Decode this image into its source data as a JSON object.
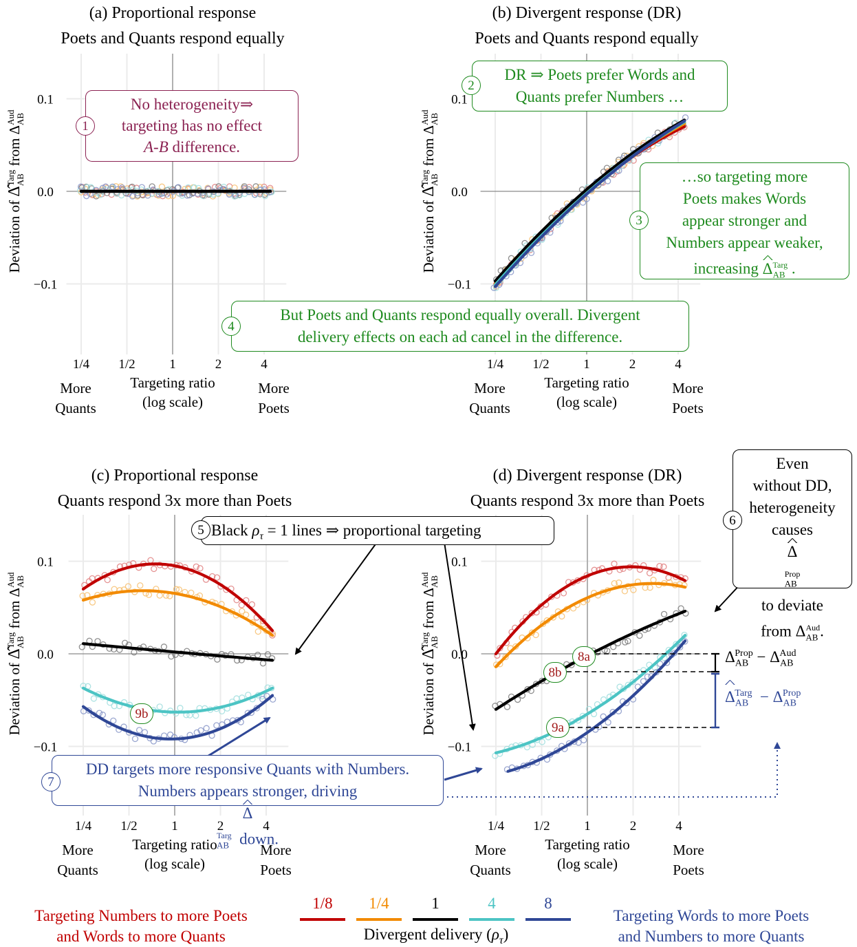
{
  "chart_data": [
    {
      "panel": "a",
      "type": "scatter",
      "title": [
        "(a) Proportional response",
        "Poets and Quants respond equally"
      ],
      "ylabel": "Deviation of Δ̂ Targ AB from Δ Aud AB",
      "xlabel": [
        "Targeting ratio",
        "(log scale)"
      ],
      "xscale": "log2",
      "xlim": [
        0.2,
        5.5
      ],
      "ylim": [
        -0.135,
        0.125
      ],
      "xticks": [
        "1/4",
        "1/2",
        "1",
        "2",
        "4"
      ],
      "yticks": [
        "−0.1",
        "0.0",
        "0.1"
      ],
      "x_end_labels": {
        "left": [
          "More",
          "Quants"
        ],
        "right": [
          "More",
          "Poets"
        ]
      },
      "series": [
        {
          "name": "1/8",
          "x": [
            0.25,
            4.4
          ],
          "y": [
            0.0,
            0.0
          ]
        },
        {
          "name": "1/4",
          "x": [
            0.25,
            4.4
          ],
          "y": [
            0.0,
            0.0
          ]
        },
        {
          "name": "1",
          "x": [
            0.25,
            4.4
          ],
          "y": [
            0.0,
            0.0
          ]
        },
        {
          "name": "4",
          "x": [
            0.25,
            4.4
          ],
          "y": [
            0.0,
            0.0
          ]
        },
        {
          "name": "8",
          "x": [
            0.25,
            4.4
          ],
          "y": [
            0.0,
            0.0
          ]
        }
      ]
    },
    {
      "panel": "b",
      "type": "scatter",
      "title": [
        "(b) Divergent response (DR)",
        "Poets and Quants respond equally"
      ],
      "ylabel": "Deviation of Δ̂ Targ AB from Δ Aud AB",
      "xlabel": [
        "Targeting ratio",
        "(log scale)"
      ],
      "xscale": "log2",
      "xlim": [
        0.2,
        5.5
      ],
      "ylim": [
        -0.135,
        0.125
      ],
      "xticks": [
        "1/4",
        "1/2",
        "1",
        "2",
        "4"
      ],
      "yticks": [
        "−0.1",
        "0.0",
        "0.1"
      ],
      "x_end_labels": {
        "left": [
          "More",
          "Quants"
        ],
        "right": [
          "More",
          "Poets"
        ]
      },
      "series": [
        {
          "name": "1/8",
          "x": [
            0.25,
            1,
            4.4
          ],
          "y": [
            -0.1,
            0.0,
            0.07
          ]
        },
        {
          "name": "1/4",
          "x": [
            0.25,
            1,
            4.4
          ],
          "y": [
            -0.1,
            0.0,
            0.073
          ]
        },
        {
          "name": "1",
          "x": [
            0.25,
            1,
            4.4
          ],
          "y": [
            -0.097,
            0.002,
            0.077
          ]
        },
        {
          "name": "4",
          "x": [
            0.25,
            1,
            4.4
          ],
          "y": [
            -0.101,
            -0.002,
            0.075
          ]
        },
        {
          "name": "8",
          "x": [
            0.25,
            1,
            4.4
          ],
          "y": [
            -0.103,
            -0.003,
            0.076
          ]
        }
      ]
    },
    {
      "panel": "c",
      "type": "scatter",
      "title": [
        "(c) Proportional response",
        "Quants respond 3x more than Poets"
      ],
      "ylabel": "Deviation of Δ̂ Targ AB from Δ Aud AB",
      "xlabel": [
        "Targeting ratio",
        "(log scale)"
      ],
      "xscale": "log2",
      "xlim": [
        0.2,
        5.5
      ],
      "ylim": [
        -0.135,
        0.125
      ],
      "xticks": [
        "1/4",
        "1/2",
        "1",
        "2",
        "4"
      ],
      "yticks": [
        "−0.1",
        "0.0",
        "0.1"
      ],
      "x_end_labels": {
        "left": [
          "More",
          "Quants"
        ],
        "right": [
          "More",
          "Poets"
        ]
      },
      "series": [
        {
          "name": "1/8",
          "x": [
            0.25,
            0.7,
            4.4
          ],
          "y": [
            0.07,
            0.097,
            0.025
          ]
        },
        {
          "name": "1/4",
          "x": [
            0.25,
            0.7,
            4.4
          ],
          "y": [
            0.058,
            0.068,
            0.02
          ]
        },
        {
          "name": "1",
          "x": [
            0.25,
            1,
            4.4
          ],
          "y": [
            0.011,
            0.002,
            -0.007
          ]
        },
        {
          "name": "4",
          "x": [
            0.25,
            1,
            4.4
          ],
          "y": [
            -0.037,
            -0.063,
            -0.037
          ]
        },
        {
          "name": "8",
          "x": [
            0.25,
            1,
            4.4
          ],
          "y": [
            -0.057,
            -0.092,
            -0.045
          ]
        }
      ]
    },
    {
      "panel": "d",
      "type": "scatter",
      "title": [
        "(d) Divergent response (DR)",
        "Quants respond 3x more than Poets"
      ],
      "ylabel": "Deviation of Δ̂ Targ AB from Δ Aud AB",
      "xlabel": [
        "Targeting ratio",
        "(log scale)"
      ],
      "xscale": "log2",
      "xlim": [
        0.2,
        5.5
      ],
      "ylim": [
        -0.135,
        0.125
      ],
      "xticks": [
        "1/4",
        "1/2",
        "1",
        "2",
        "4"
      ],
      "yticks": [
        "−0.1",
        "0.0",
        "0.1"
      ],
      "x_end_labels": {
        "left": [
          "More",
          "Quants"
        ],
        "right": [
          "More",
          "Poets"
        ]
      },
      "series": [
        {
          "name": "1/8",
          "x": [
            0.25,
            2,
            4.4
          ],
          "y": [
            0.0,
            0.094,
            0.079
          ]
        },
        {
          "name": "1/4",
          "x": [
            0.25,
            2.6,
            4.4
          ],
          "y": [
            -0.014,
            0.076,
            0.072
          ]
        },
        {
          "name": "1",
          "x": [
            0.25,
            1,
            4.4
          ],
          "y": [
            -0.06,
            -0.002,
            0.046
          ]
        },
        {
          "name": "4",
          "x": [
            0.25,
            1,
            4.4
          ],
          "y": [
            -0.107,
            -0.065,
            0.02
          ]
        },
        {
          "name": "8",
          "x": [
            0.3,
            1,
            4.4
          ],
          "y": [
            -0.127,
            -0.085,
            0.014
          ]
        }
      ]
    }
  ],
  "legend": {
    "title": "Divergent delivery (ρτ)",
    "items": [
      {
        "label": "1/8",
        "color": "#c00000"
      },
      {
        "label": "1/4",
        "color": "#f28a00"
      },
      {
        "label": "1",
        "color": "#000000"
      },
      {
        "label": "4",
        "color": "#4cc4c4"
      },
      {
        "label": "8",
        "color": "#2f4796"
      }
    ],
    "left_text": [
      "Targeting Numbers to more Poets",
      "and Words to more Quants"
    ],
    "right_text": [
      "Targeting Words to more Poets",
      "and Numbers to more Quants"
    ]
  },
  "annotations": {
    "a1": {
      "num": "1",
      "lines": [
        "No heterogeneity⇒",
        "targeting has no effect",
        "on A-B difference."
      ]
    },
    "a2": {
      "num": "2",
      "lines": [
        "DR ⇒ Poets prefer Words and",
        "Quants prefer Numbers …"
      ]
    },
    "a3": {
      "num": "3",
      "lines": [
        "…so targeting more",
        "Poets makes Words",
        "appear stronger and",
        "Numbers appear weaker,",
        "increasing Δ̂ Targ AB ."
      ]
    },
    "a4": {
      "num": "4",
      "lines": [
        "But Poets and Quants respond equally overall.  Divergent",
        "delivery effects on each ad cancel in the difference."
      ]
    },
    "a5": {
      "num": "5",
      "text": "Black ρτ = 1 lines ⇒ proportional targeting"
    },
    "a6": {
      "num": "6",
      "lines": [
        "Even",
        "without DD,",
        "heterogeneity",
        "causes Δ̂ Prop AB",
        "to deviate",
        "from Δ Aud AB."
      ]
    },
    "a7": {
      "num": "7",
      "lines": [
        "DD targets more responsive Quants with Numbers.",
        "Numbers appears stronger, driving Δ̂ Targ AB  down."
      ]
    },
    "m8a": "8a",
    "m8b": "8b",
    "m9a": "9a",
    "m9b": "9b",
    "bracket_top": "Δ Prop AB − Δ Aud AB",
    "bracket_bottom": "Δ̂ Targ AB − Δ Prop AB"
  },
  "colors": {
    "annotation_red": "#8b2252",
    "annotation_green": "#1e8a1e",
    "annotation_blue": "#2f4796",
    "marker_red": "#a01818"
  }
}
